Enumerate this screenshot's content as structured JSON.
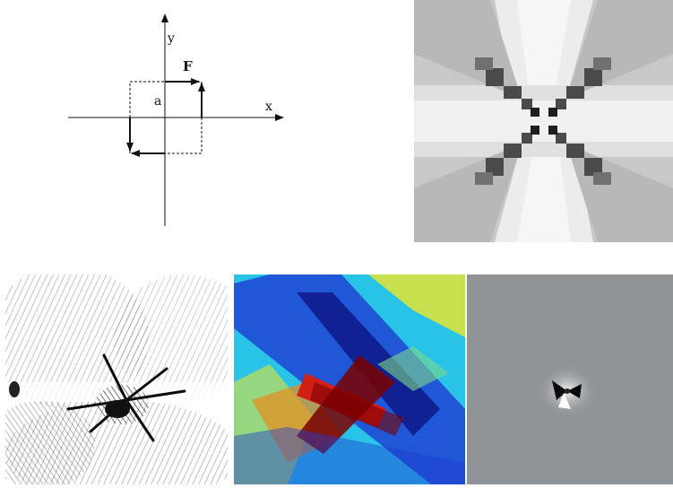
{
  "diagram": {
    "x_label": "x",
    "y_label": "y",
    "force_label": "F",
    "size_label": "a"
  },
  "panels": {
    "top_right": "pixelated-quadrupole-gray-map",
    "bottom_left": "black-white-line-pattern",
    "bottom_middle": "jet-colormap-field",
    "bottom_right": "gray-dipole-field"
  },
  "colors": {
    "jet_dark_red": "#7a0000",
    "jet_red": "#d21e14",
    "jet_yellow": "#f0e628",
    "jet_cyan": "#28c3e6",
    "jet_blue": "#1e3cd2",
    "jet_dark_blue": "#0a0a78",
    "gray_background": "#909497"
  }
}
